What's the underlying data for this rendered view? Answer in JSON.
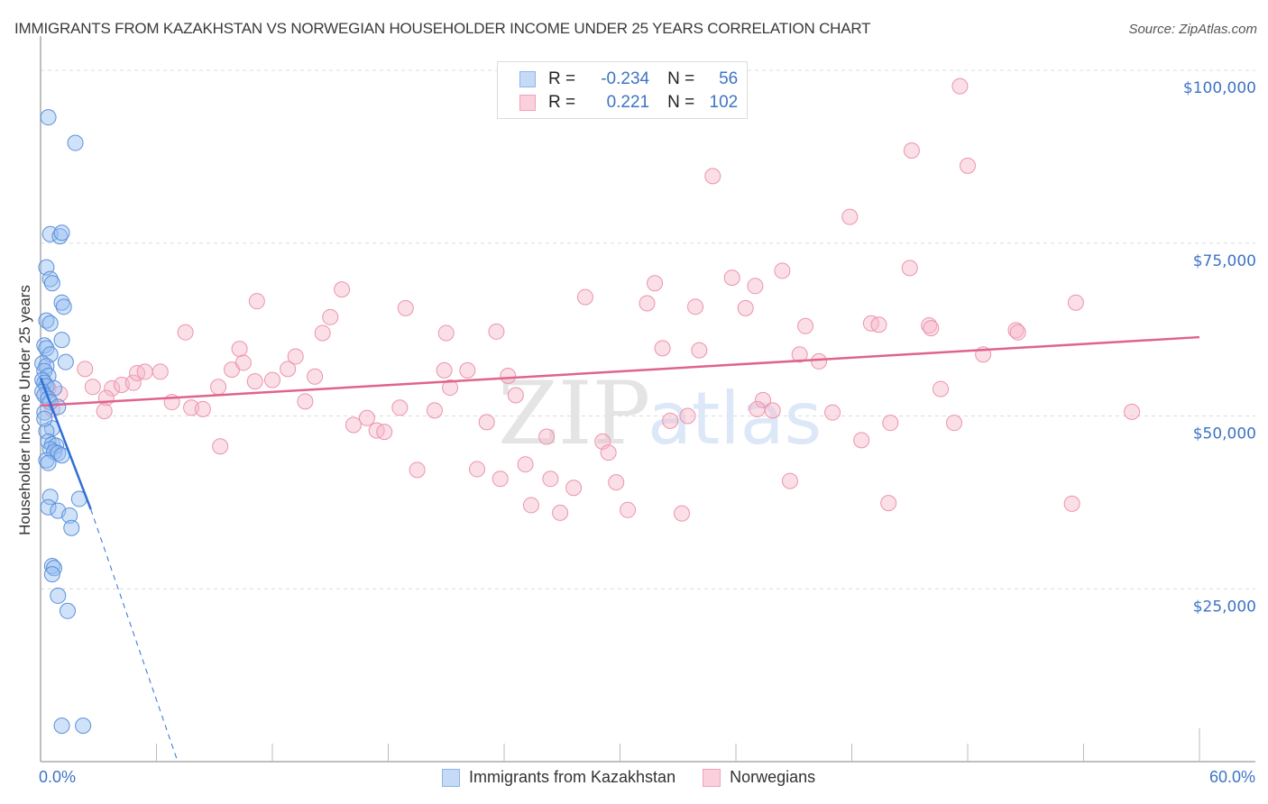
{
  "header": {
    "title": "IMMIGRANTS FROM KAZAKHSTAN VS NORWEGIAN HOUSEHOLDER INCOME UNDER 25 YEARS CORRELATION CHART",
    "source": "Source: ZipAtlas.com"
  },
  "legend_top": {
    "rows": [
      {
        "r_label": "R =",
        "r_value": "-0.234",
        "n_label": "N =",
        "n_value": "56",
        "color": "#a9c8f2"
      },
      {
        "r_label": "R =",
        "r_value": "0.221",
        "n_label": "N =",
        "n_value": "102",
        "color": "#f7b8ca"
      }
    ]
  },
  "legend_bottom": {
    "items": [
      {
        "label": "Immigrants from Kazakhstan",
        "color": "#a9c8f2"
      },
      {
        "label": "Norwegians",
        "color": "#f7b8ca"
      }
    ]
  },
  "axes": {
    "x_min_label": "0.0%",
    "x_max_label": "60.0%",
    "y_title": "Householder Income Under 25 years",
    "y_ticks": [
      "$100,000",
      "$75,000",
      "$50,000",
      "$25,000"
    ]
  },
  "watermark": {
    "zip": "ZIP",
    "atlas": "atlas"
  },
  "colors": {
    "blue": "#3d74c6",
    "blue_fill": "#a9c8f2",
    "blue_line": "#2f6fd6",
    "pink_fill": "#f7b8ca",
    "pink_line": "#e0638c",
    "grid": "#dddddd"
  },
  "chart_data": {
    "type": "scatter",
    "title": "IMMIGRANTS FROM KAZAKHSTAN VS NORWEGIAN HOUSEHOLDER INCOME UNDER 25 YEARS CORRELATION CHART",
    "xlabel": "",
    "ylabel": "Householder Income Under 25 years",
    "xlim": [
      0,
      60
    ],
    "ylim": [
      0,
      100000
    ],
    "x_unit": "%",
    "grid": true,
    "legend_position": "top-center and bottom",
    "series": [
      {
        "name": "Immigrants from Kazakhstan",
        "R": -0.234,
        "N": 56,
        "trend": {
          "x0": 0,
          "y0": 55500,
          "x1": 2.6,
          "y1": 36500,
          "dashed_extension_to": [
            7.1,
            0
          ]
        },
        "points": [
          [
            0.4,
            93200
          ],
          [
            1.8,
            89500
          ],
          [
            0.5,
            76300
          ],
          [
            1.0,
            76000
          ],
          [
            1.1,
            76500
          ],
          [
            0.3,
            71500
          ],
          [
            0.5,
            69800
          ],
          [
            0.6,
            69200
          ],
          [
            1.1,
            66400
          ],
          [
            1.2,
            65800
          ],
          [
            0.3,
            63800
          ],
          [
            0.5,
            63400
          ],
          [
            1.1,
            61000
          ],
          [
            0.2,
            60200
          ],
          [
            0.3,
            59800
          ],
          [
            0.5,
            58900
          ],
          [
            1.3,
            57800
          ],
          [
            0.1,
            57600
          ],
          [
            0.3,
            57200
          ],
          [
            0.2,
            56500
          ],
          [
            0.4,
            55800
          ],
          [
            0.1,
            55200
          ],
          [
            0.2,
            54800
          ],
          [
            0.3,
            54300
          ],
          [
            0.7,
            54000
          ],
          [
            0.1,
            53500
          ],
          [
            0.2,
            53000
          ],
          [
            0.4,
            52500
          ],
          [
            0.5,
            52000
          ],
          [
            0.9,
            51300
          ],
          [
            0.2,
            50500
          ],
          [
            0.6,
            48200
          ],
          [
            0.3,
            47800
          ],
          [
            0.4,
            46300
          ],
          [
            0.6,
            45900
          ],
          [
            0.8,
            45700
          ],
          [
            0.5,
            45200
          ],
          [
            0.7,
            44800
          ],
          [
            0.9,
            44600
          ],
          [
            1.1,
            44300
          ],
          [
            0.3,
            43600
          ],
          [
            0.4,
            43200
          ],
          [
            0.5,
            38300
          ],
          [
            2.0,
            38000
          ],
          [
            0.4,
            36800
          ],
          [
            0.9,
            36300
          ],
          [
            1.5,
            35600
          ],
          [
            1.6,
            33800
          ],
          [
            0.6,
            28300
          ],
          [
            0.7,
            28000
          ],
          [
            0.6,
            27100
          ],
          [
            0.9,
            24000
          ],
          [
            1.4,
            21800
          ],
          [
            1.1,
            5200
          ],
          [
            2.2,
            5200
          ],
          [
            0.2,
            49600
          ]
        ]
      },
      {
        "name": "Norwegians",
        "R": 0.221,
        "N": 102,
        "trend": {
          "x0": 0,
          "y0": 51500,
          "x1": 60,
          "y1": 61400
        },
        "points": [
          [
            0.4,
            54000
          ],
          [
            0.6,
            51000
          ],
          [
            2.3,
            56800
          ],
          [
            2.7,
            54200
          ],
          [
            3.7,
            54000
          ],
          [
            3.4,
            52600
          ],
          [
            3.3,
            50700
          ],
          [
            4.2,
            54500
          ],
          [
            4.8,
            54800
          ],
          [
            5.0,
            56200
          ],
          [
            5.4,
            56400
          ],
          [
            6.2,
            56400
          ],
          [
            6.8,
            52000
          ],
          [
            7.5,
            62100
          ],
          [
            7.8,
            51200
          ],
          [
            8.4,
            51000
          ],
          [
            9.2,
            54200
          ],
          [
            9.3,
            45600
          ],
          [
            9.9,
            56700
          ],
          [
            10.3,
            59700
          ],
          [
            10.5,
            57700
          ],
          [
            11.1,
            55000
          ],
          [
            11.2,
            66600
          ],
          [
            12.0,
            55200
          ],
          [
            12.8,
            56800
          ],
          [
            13.2,
            58600
          ],
          [
            13.7,
            52100
          ],
          [
            14.2,
            55700
          ],
          [
            14.6,
            62000
          ],
          [
            15.0,
            64300
          ],
          [
            15.6,
            68300
          ],
          [
            16.2,
            48700
          ],
          [
            16.9,
            49700
          ],
          [
            17.4,
            47900
          ],
          [
            17.8,
            47700
          ],
          [
            18.6,
            51200
          ],
          [
            18.9,
            65600
          ],
          [
            19.5,
            42200
          ],
          [
            20.4,
            50800
          ],
          [
            20.9,
            56600
          ],
          [
            21.0,
            62000
          ],
          [
            21.2,
            54100
          ],
          [
            22.1,
            56600
          ],
          [
            22.6,
            42300
          ],
          [
            23.1,
            49100
          ],
          [
            23.6,
            62200
          ],
          [
            23.8,
            40900
          ],
          [
            24.2,
            55800
          ],
          [
            24.6,
            53000
          ],
          [
            25.1,
            43000
          ],
          [
            25.4,
            37100
          ],
          [
            26.2,
            47000
          ],
          [
            26.4,
            40900
          ],
          [
            26.9,
            36000
          ],
          [
            27.6,
            39600
          ],
          [
            28.2,
            67200
          ],
          [
            29.1,
            46300
          ],
          [
            29.4,
            44700
          ],
          [
            29.8,
            40400
          ],
          [
            30.4,
            36400
          ],
          [
            31.4,
            66300
          ],
          [
            31.8,
            69200
          ],
          [
            32.2,
            59800
          ],
          [
            32.6,
            49300
          ],
          [
            33.2,
            35900
          ],
          [
            33.5,
            50000
          ],
          [
            33.9,
            65800
          ],
          [
            34.1,
            59500
          ],
          [
            34.8,
            84700
          ],
          [
            35.8,
            70000
          ],
          [
            36.5,
            65600
          ],
          [
            37.0,
            68800
          ],
          [
            37.4,
            52300
          ],
          [
            37.1,
            51000
          ],
          [
            37.9,
            50800
          ],
          [
            38.4,
            71000
          ],
          [
            38.8,
            40600
          ],
          [
            39.3,
            58900
          ],
          [
            39.6,
            63000
          ],
          [
            40.3,
            57900
          ],
          [
            41.0,
            50500
          ],
          [
            41.9,
            78800
          ],
          [
            42.5,
            46500
          ],
          [
            43.0,
            63400
          ],
          [
            43.4,
            63200
          ],
          [
            43.9,
            37400
          ],
          [
            44.0,
            49000
          ],
          [
            45.0,
            71400
          ],
          [
            45.1,
            88400
          ],
          [
            46.0,
            63100
          ],
          [
            46.1,
            62700
          ],
          [
            46.6,
            53900
          ],
          [
            47.3,
            49000
          ],
          [
            47.6,
            97700
          ],
          [
            48.0,
            86200
          ],
          [
            48.8,
            58900
          ],
          [
            50.5,
            62400
          ],
          [
            50.6,
            62100
          ],
          [
            53.4,
            37300
          ],
          [
            53.6,
            66400
          ],
          [
            56.5,
            50600
          ],
          [
            1.0,
            53200
          ]
        ]
      }
    ]
  }
}
